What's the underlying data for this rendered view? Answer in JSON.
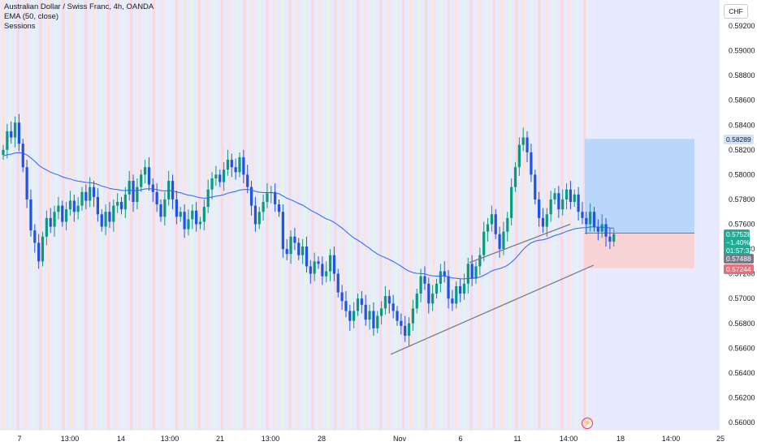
{
  "legend": {
    "symbol_line": "Australian Dollar / Swiss Franc, 4h, OANDA",
    "ema_line": "EMA (50, close)",
    "sessions_line": "Sessions"
  },
  "currency_button": "CHF",
  "price_axis": {
    "min": 0.56,
    "max": 0.592,
    "ticks": [
      "0.59200",
      "0.59000",
      "0.58800",
      "0.58600",
      "0.58400",
      "0.58200",
      "0.58000",
      "0.57800",
      "0.57600",
      "0.57400",
      "0.57200",
      "0.57000",
      "0.56800",
      "0.56600",
      "0.56400",
      "0.56200",
      "0.56000"
    ]
  },
  "price_tags": {
    "target": {
      "value": "0.58289",
      "color": "#d1e3fc",
      "text_color": "#131722"
    },
    "last_price": "0.57528",
    "change": "−1.40%",
    "countdown": "01:57:31",
    "last_color": "#22ab94",
    "entry": {
      "value": "0.57488",
      "color": "#787b86"
    },
    "stop": {
      "value": "0.57244",
      "color": "#e0707a"
    }
  },
  "time_axis": {
    "labels": [
      "7",
      "13:00",
      "14",
      "13:00",
      "21",
      "13:00",
      "28",
      "Nov",
      "6",
      "11",
      "14:00",
      "18",
      "14:00",
      "25"
    ]
  },
  "colors": {
    "up": "#089981",
    "down": "#1e53e5",
    "ema": "#2962ff",
    "trendline": "#787b86",
    "profit_zone": "#bbd6fb",
    "loss_zone": "#f9d4d6"
  },
  "flash_icon": "lightning-icon"
}
